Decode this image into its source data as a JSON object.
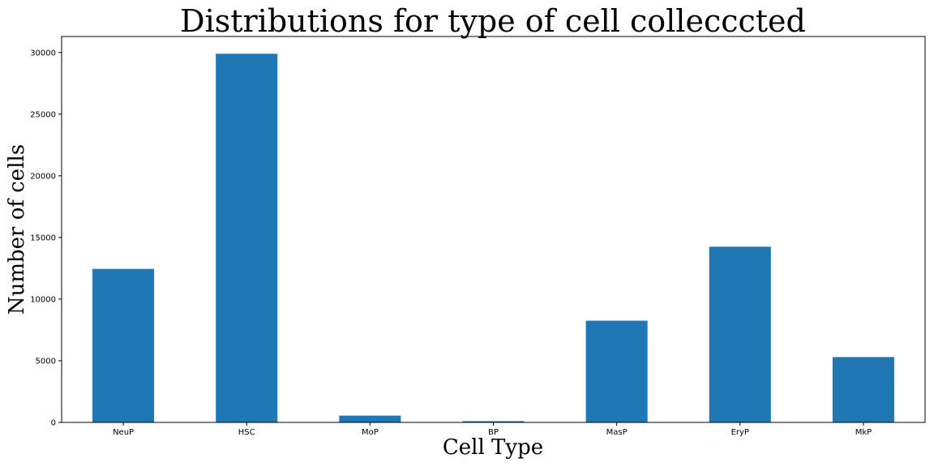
{
  "chart_data": {
    "type": "bar",
    "title": "Distributions for type of cell collecccted",
    "xlabel": "Cell Type",
    "ylabel": "Number of cells",
    "categories": [
      "NeuP",
      "HSC",
      "MoP",
      "BP",
      "MasP",
      "EryP",
      "MkP"
    ],
    "values": [
      12450,
      29900,
      550,
      100,
      8250,
      14250,
      5300
    ],
    "ylim": [
      0,
      31300
    ],
    "yticks": [
      0,
      5000,
      10000,
      15000,
      20000,
      25000,
      30000
    ],
    "grid": false,
    "bar_color": "#1f77b4"
  }
}
